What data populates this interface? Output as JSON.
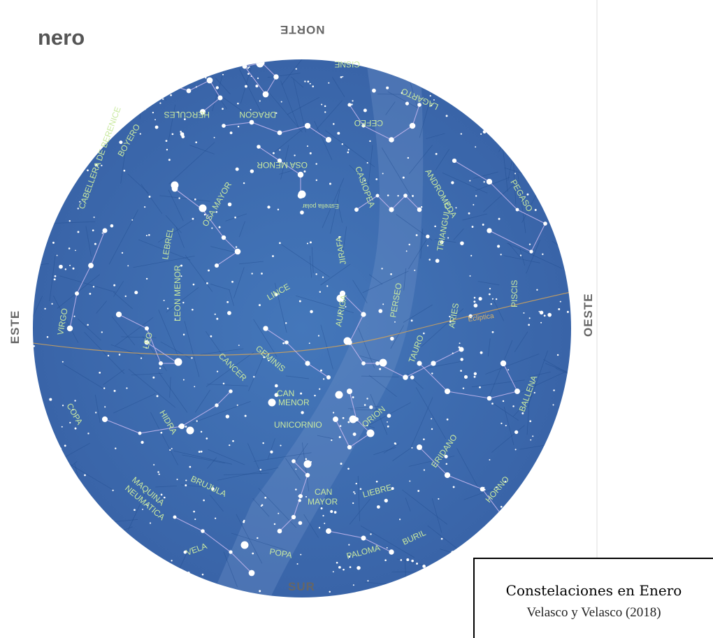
{
  "header": {
    "month_fragment": "nero"
  },
  "cardinals": {
    "north": "NORTE",
    "south": "SUR",
    "east": "ESTE",
    "west": "OESTE"
  },
  "map": {
    "background_color": "#3b6aae",
    "line_color": "#c8b8f0",
    "label_color": "#c9e9a0",
    "ecliptic_label": "Ecliptica",
    "pole_star_label": "Estrella polar",
    "constellations": [
      "CISNE",
      "HERCULES",
      "DRAGON",
      "CEFEO",
      "LAGARTO",
      "BOYERO",
      "OSA MENOR",
      "CASIOPEA",
      "ANDROMEDA",
      "PEGASO",
      "CABELLERA DE BERENICE",
      "OSA MAYOR",
      "LEBREL",
      "JIRAFA",
      "TRIANGULO",
      "PISCIS",
      "VIRGO",
      "LEON MENOR",
      "LINCE",
      "AURIGA",
      "PERSEO",
      "ARIES",
      "LEO",
      "CANCER",
      "GEMINIS",
      "TAURO",
      "BALLENA",
      "COPA",
      "HIDRA",
      "CAN MENOR",
      "ORION",
      "UNICORNIO",
      "ERIDANO",
      "MAQUINA NEUMATICA",
      "BRUJULA",
      "CAN MAYOR",
      "LIEBRE",
      "HORNO",
      "VELA",
      "POPA",
      "PALOMA",
      "BURIL"
    ]
  },
  "caption": {
    "title": "Constelaciones en Enero",
    "subtitle": "Velasco y Velasco (2018)"
  }
}
